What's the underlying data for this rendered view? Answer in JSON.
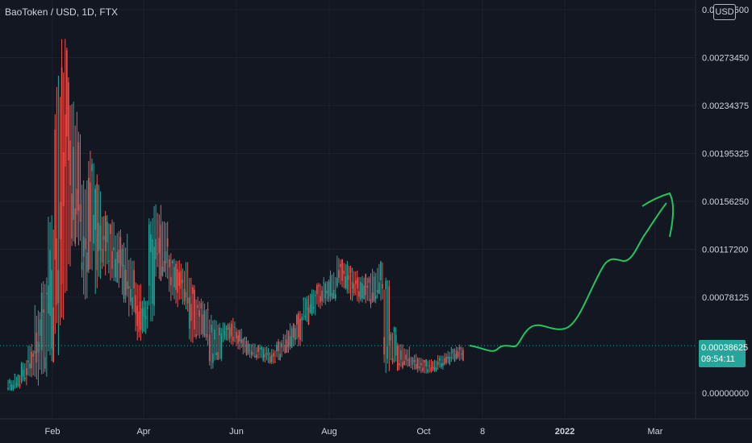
{
  "header": {
    "title": "BaoToken / USD, 1D, FTX",
    "currency": "USD"
  },
  "last_price": {
    "value": "0.00038625",
    "countdown": "09:54:11"
  },
  "colors": {
    "background": "#131722",
    "up": "#26a69a",
    "down": "#ef5350",
    "annotation": "#22c55e",
    "grid": "#1e222d",
    "axis_text": "#d1d4dc"
  },
  "chart_data": {
    "type": "candlestick",
    "y_ticks": [
      "0.00000000",
      "0.00078125",
      "0.00117200",
      "0.00156250",
      "0.00195325",
      "0.00234375",
      "0.00273450",
      "0.00312500"
    ],
    "x_ticks": [
      "Feb",
      "Apr",
      "Jun",
      "Aug",
      "Oct",
      "8",
      "2022",
      "Mar"
    ],
    "ylim": [
      0,
      0.003125
    ],
    "last_value": 0.00038625,
    "series": [
      {
        "values": [
          [
            1e-05,
            0.00012
          ],
          [
            3e-05,
            0.00016
          ],
          [
            6e-05,
            0.00027
          ],
          [
            8e-05,
            0.00041
          ],
          [
            6e-05,
            0.00072
          ],
          [
            0.00013,
            0.00104
          ],
          [
            0.00022,
            0.00145
          ],
          [
            0.00027,
            0.00262
          ],
          [
            0.00032,
            0.00312
          ],
          [
            0.0009,
            0.0026
          ],
          [
            0.00115,
            0.0023
          ],
          [
            0.00075,
            0.00182
          ],
          [
            0.00095,
            0.00205
          ],
          [
            0.00078,
            0.00185
          ],
          [
            0.00095,
            0.0015
          ],
          [
            0.00088,
            0.00142
          ],
          [
            0.00085,
            0.00135
          ],
          [
            0.0007,
            0.0013
          ],
          [
            0.00062,
            0.00111
          ],
          [
            0.0004,
            0.00098
          ],
          [
            0.00048,
            0.00078
          ],
          [
            0.0005,
            0.0016
          ],
          [
            0.0009,
            0.00155
          ],
          [
            0.00088,
            0.0014
          ],
          [
            0.00075,
            0.00115
          ],
          [
            0.0007,
            0.0011
          ],
          [
            0.00065,
            0.00108
          ],
          [
            0.0004,
            0.00095
          ],
          [
            0.00042,
            0.0008
          ],
          [
            0.00038,
            0.00075
          ],
          [
            0.00018,
            0.00065
          ],
          [
            0.00025,
            0.0006
          ],
          [
            0.0004,
            0.00058
          ],
          [
            0.00038,
            0.00062
          ],
          [
            0.00035,
            0.00055
          ],
          [
            0.0003,
            0.00046
          ],
          [
            0.00028,
            0.00042
          ],
          [
            0.00026,
            0.0004
          ],
          [
            0.00024,
            0.00038
          ],
          [
            0.00022,
            0.00036
          ],
          [
            0.00026,
            0.00045
          ],
          [
            0.0003,
            0.00052
          ],
          [
            0.00035,
            0.00058
          ],
          [
            0.00038,
            0.00067
          ],
          [
            0.00055,
            0.00082
          ],
          [
            0.0006,
            0.00085
          ],
          [
            0.00068,
            0.0009
          ],
          [
            0.0007,
            0.00095
          ],
          [
            0.00072,
            0.001
          ],
          [
            0.00085,
            0.00113
          ],
          [
            0.0008,
            0.00108
          ],
          [
            0.00075,
            0.00105
          ],
          [
            0.0007,
            0.001
          ],
          [
            0.00072,
            0.00098
          ],
          [
            0.00068,
            0.00102
          ],
          [
            0.00075,
            0.00108
          ],
          [
            0.00015,
            0.00095
          ],
          [
            0.0002,
            0.00055
          ],
          [
            0.00018,
            0.00042
          ],
          [
            0.0002,
            0.00038
          ],
          [
            0.00018,
            0.00032
          ],
          [
            0.00016,
            0.0003
          ],
          [
            0.00015,
            0.00028
          ],
          [
            0.00016,
            0.00028
          ],
          [
            0.00018,
            0.00032
          ],
          [
            0.00022,
            0.00035
          ],
          [
            0.00025,
            0.00038
          ],
          [
            0.00026,
            0.0004
          ]
        ]
      }
    ]
  }
}
